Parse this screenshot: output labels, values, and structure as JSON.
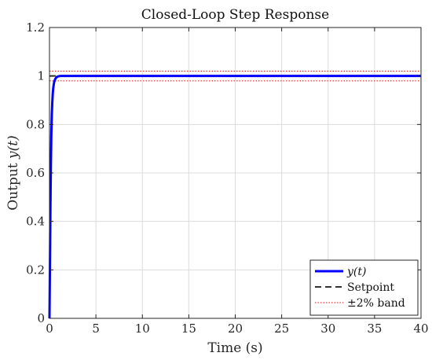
{
  "chart_data": {
    "type": "line",
    "title": "Closed-Loop Step Response",
    "xlabel": "Time (s)",
    "ylabel": "Output y(t)",
    "xlim": [
      0,
      40
    ],
    "ylim": [
      0,
      1.2
    ],
    "xticks": [
      0,
      5,
      10,
      15,
      20,
      25,
      30,
      35,
      40
    ],
    "yticks": [
      0,
      0.2,
      0.4,
      0.6,
      0.8,
      1,
      1.2
    ],
    "xtick_labels": [
      "0",
      "5",
      "10",
      "15",
      "20",
      "25",
      "30",
      "35",
      "40"
    ],
    "ytick_labels": [
      "0",
      "0.2",
      "0.4",
      "0.6",
      "0.8",
      "1",
      "1.2"
    ],
    "grid": true,
    "legend_position": "bottom-right",
    "series": [
      {
        "name": "y(t)",
        "style": "solid",
        "color": "#0000ff",
        "x": [
          0,
          0.05,
          0.1,
          0.15,
          0.2,
          0.25,
          0.3,
          0.35,
          0.4,
          0.45,
          0.5,
          0.6,
          0.7,
          0.8,
          0.9,
          1.0,
          1.2,
          1.5,
          2,
          3,
          5,
          10,
          20,
          30,
          40
        ],
        "y": [
          0,
          0.22,
          0.45,
          0.63,
          0.76,
          0.84,
          0.89,
          0.925,
          0.948,
          0.963,
          0.974,
          0.986,
          0.992,
          0.996,
          0.998,
          0.999,
          1.0,
          1.0,
          1.0,
          1.0,
          1.0,
          1.0,
          1.0,
          1.0,
          1.0
        ]
      },
      {
        "name": "Setpoint",
        "style": "dashed",
        "color": "#333333",
        "x": [
          0,
          40
        ],
        "y": [
          1,
          1
        ]
      },
      {
        "name": "±2% band",
        "style": "dotted",
        "color": "#ff0000",
        "x": [
          0,
          40
        ],
        "y": [
          1.02,
          1.02
        ],
        "y_lower": [
          0.98,
          0.98
        ]
      }
    ]
  }
}
